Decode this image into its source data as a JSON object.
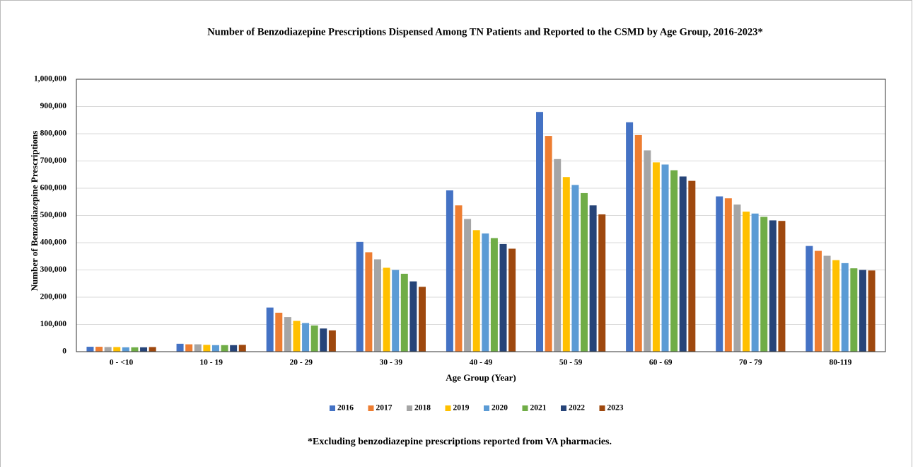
{
  "chart_data": {
    "type": "bar",
    "title": "Number of  Benzodiazepine Prescriptions Dispensed Among TN Patients and Reported to the CSMD by Age Group, 2016-2023*",
    "x_label": "Age Group (Year)",
    "y_label": "Number of Benzodiazepine Prescriptions",
    "footnote": "*Excluding benzodiazepine prescriptions reported from VA pharmacies.",
    "categories": [
      "0 - <10",
      "10 - 19",
      "20 - 29",
      "30 - 39",
      "40 - 49",
      "50 - 59",
      "60 - 69",
      "70 - 79",
      "80-119"
    ],
    "series": [
      {
        "name": "2016",
        "color": "#4472c4",
        "values": [
          18000,
          29000,
          162000,
          403000,
          592000,
          880000,
          842000,
          570000,
          388000
        ]
      },
      {
        "name": "2017",
        "color": "#ed7d31",
        "values": [
          18000,
          27000,
          143000,
          365000,
          537000,
          792000,
          795000,
          563000,
          370000
        ]
      },
      {
        "name": "2018",
        "color": "#a5a5a5",
        "values": [
          17000,
          27000,
          127000,
          339000,
          487000,
          707000,
          739000,
          540000,
          352000
        ]
      },
      {
        "name": "2019",
        "color": "#ffc000",
        "values": [
          17000,
          25000,
          113000,
          308000,
          446000,
          641000,
          695000,
          514000,
          336000
        ]
      },
      {
        "name": "2020",
        "color": "#5b9bd5",
        "values": [
          16000,
          24000,
          105000,
          300000,
          434000,
          612000,
          687000,
          507000,
          325000
        ]
      },
      {
        "name": "2021",
        "color": "#70ad47",
        "values": [
          16000,
          24000,
          96000,
          286000,
          417000,
          582000,
          666000,
          495000,
          306000
        ]
      },
      {
        "name": "2022",
        "color": "#264478",
        "values": [
          16000,
          24000,
          85000,
          258000,
          395000,
          537000,
          643000,
          482000,
          300000
        ]
      },
      {
        "name": "2023",
        "color": "#9e480e",
        "values": [
          17000,
          25000,
          78000,
          238000,
          378000,
          504000,
          627000,
          480000,
          298000
        ]
      }
    ],
    "ylim": [
      0,
      1000000
    ],
    "yticks": [
      0,
      {
        "value": 100000,
        "label": "100,000"
      },
      {
        "value": 200000,
        "label": "200,000"
      },
      {
        "value": 300000,
        "label": "300,000"
      },
      {
        "value": 400000,
        "label": "400,000"
      },
      {
        "value": 500000,
        "label": "500,000"
      },
      {
        "value": 600000,
        "label": "600,000"
      },
      {
        "value": 700000,
        "label": "700,000"
      },
      {
        "value": 800000,
        "label": "800,000"
      },
      {
        "value": 900000,
        "label": "900,000"
      },
      {
        "value": 1000000,
        "label": "1,000,000"
      }
    ],
    "grid": true,
    "legend": "bottom"
  }
}
